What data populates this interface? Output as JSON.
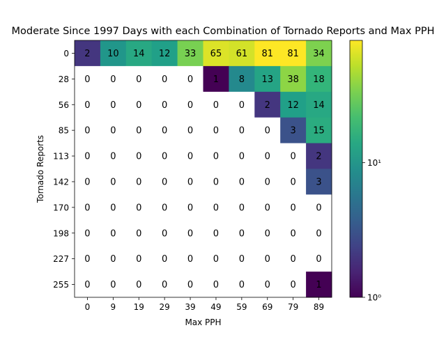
{
  "chart_data": {
    "type": "heatmap",
    "title": "Moderate Since 1997 Days with each Combination of Tornado Reports and Max PPH",
    "xlabel": "Max PPH",
    "ylabel": "Tornado Reports",
    "x_ticks": [
      "0",
      "9",
      "19",
      "29",
      "39",
      "49",
      "59",
      "69",
      "79",
      "89"
    ],
    "y_ticks": [
      "0",
      "28",
      "56",
      "85",
      "113",
      "142",
      "170",
      "198",
      "227",
      "255"
    ],
    "values": [
      [
        2,
        10,
        14,
        12,
        33,
        65,
        61,
        81,
        81,
        34
      ],
      [
        0,
        0,
        0,
        0,
        0,
        1,
        8,
        13,
        38,
        18
      ],
      [
        0,
        0,
        0,
        0,
        0,
        0,
        0,
        2,
        12,
        14
      ],
      [
        0,
        0,
        0,
        0,
        0,
        0,
        0,
        0,
        3,
        15
      ],
      [
        0,
        0,
        0,
        0,
        0,
        0,
        0,
        0,
        0,
        2
      ],
      [
        0,
        0,
        0,
        0,
        0,
        0,
        0,
        0,
        0,
        3
      ],
      [
        0,
        0,
        0,
        0,
        0,
        0,
        0,
        0,
        0,
        0
      ],
      [
        0,
        0,
        0,
        0,
        0,
        0,
        0,
        0,
        0,
        0
      ],
      [
        0,
        0,
        0,
        0,
        0,
        0,
        0,
        0,
        0,
        0
      ],
      [
        0,
        0,
        0,
        0,
        0,
        0,
        0,
        0,
        0,
        1
      ]
    ],
    "color_scale": "log",
    "colormap": "viridis",
    "color_range": [
      1,
      81
    ],
    "zero_cell_color": "#ffffff",
    "colorbar_ticks": [
      {
        "value": 1,
        "label": "10⁰"
      },
      {
        "value": 10,
        "label": "10¹"
      }
    ],
    "grid": false,
    "legend": "colorbar-right"
  }
}
